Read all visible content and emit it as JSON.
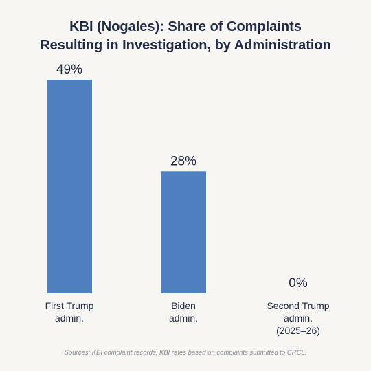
{
  "chart_data": {
    "type": "bar",
    "title_lines": [
      "KBI (Nogales): Share of Complaints",
      "Resulting in Investigation, by Administration"
    ],
    "categories": [
      [
        "First Trump",
        "admin."
      ],
      [
        "Biden",
        "admin."
      ],
      [
        "Second Trump",
        "admin.",
        "(2025–26)"
      ]
    ],
    "values": [
      49,
      28,
      0
    ],
    "value_labels": [
      "49%",
      "28%",
      "0%"
    ],
    "ylim": [
      0,
      49
    ],
    "grid": false,
    "bar_color": "#4f7fbf",
    "source": "Sources: KBI complaint records; KBI rates based on complaints submitted to CRCL."
  }
}
